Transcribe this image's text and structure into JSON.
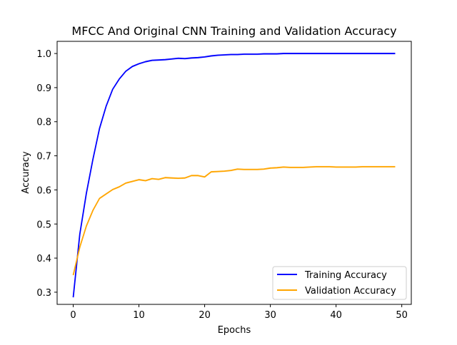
{
  "chart_data": {
    "type": "line",
    "title": "MFCC And Original CNN Training and Validation Accuracy",
    "xlabel": "Epochs",
    "ylabel": "Accuracy",
    "xlim": [
      -2.45,
      51.45
    ],
    "ylim": [
      0.2643,
      1.0357
    ],
    "xticks": [
      0,
      10,
      20,
      30,
      40,
      50
    ],
    "yticks": [
      0.3,
      0.4,
      0.5,
      0.6,
      0.7,
      0.8,
      0.9,
      1.0
    ],
    "xtick_labels": [
      "0",
      "10",
      "20",
      "30",
      "40",
      "50"
    ],
    "ytick_labels": [
      "0.3",
      "0.4",
      "0.5",
      "0.6",
      "0.7",
      "0.8",
      "0.9",
      "1.0"
    ],
    "grid": false,
    "legend_position": "lower right",
    "x": [
      0,
      1,
      2,
      3,
      4,
      5,
      6,
      7,
      8,
      9,
      10,
      11,
      12,
      13,
      14,
      15,
      16,
      17,
      18,
      19,
      20,
      21,
      22,
      23,
      24,
      25,
      26,
      27,
      28,
      29,
      30,
      31,
      32,
      33,
      34,
      35,
      36,
      37,
      38,
      39,
      40,
      41,
      42,
      43,
      44,
      45,
      46,
      47,
      48,
      49
    ],
    "series": [
      {
        "name": "Training Accuracy",
        "color": "#0000ff",
        "values": [
          0.285,
          0.47,
          0.59,
          0.69,
          0.78,
          0.845,
          0.895,
          0.925,
          0.948,
          0.962,
          0.97,
          0.976,
          0.98,
          0.981,
          0.982,
          0.984,
          0.986,
          0.985,
          0.987,
          0.988,
          0.99,
          0.993,
          0.995,
          0.996,
          0.997,
          0.997,
          0.998,
          0.998,
          0.998,
          0.999,
          0.999,
          0.999,
          1.0,
          1.0,
          1.0,
          1.0,
          1.0,
          1.0,
          1.0,
          1.0,
          1.0,
          1.0,
          1.0,
          1.0,
          1.0,
          1.0,
          1.0,
          1.0,
          1.0,
          1.0
        ]
      },
      {
        "name": "Validation Accuracy",
        "color": "#ffa500",
        "values": [
          0.35,
          0.432,
          0.494,
          0.54,
          0.575,
          0.588,
          0.601,
          0.609,
          0.62,
          0.625,
          0.63,
          0.627,
          0.633,
          0.631,
          0.636,
          0.635,
          0.634,
          0.635,
          0.642,
          0.642,
          0.638,
          0.653,
          0.654,
          0.655,
          0.657,
          0.661,
          0.66,
          0.66,
          0.66,
          0.661,
          0.664,
          0.665,
          0.667,
          0.666,
          0.666,
          0.666,
          0.667,
          0.668,
          0.668,
          0.668,
          0.667,
          0.667,
          0.667,
          0.667,
          0.668,
          0.668,
          0.668,
          0.668,
          0.668,
          0.668
        ]
      }
    ]
  }
}
